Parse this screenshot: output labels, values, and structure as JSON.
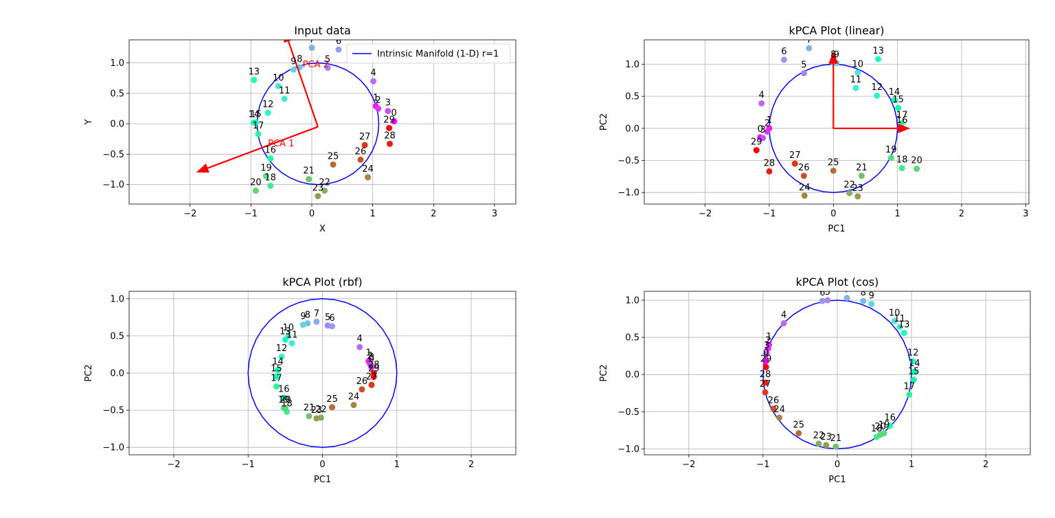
{
  "chart_data": [
    {
      "type": "scatter",
      "title": "Input data",
      "xlabel": "X",
      "ylabel": "Y",
      "xlim": [
        -3.0,
        3.35
      ],
      "ylim": [
        -1.32,
        1.38
      ],
      "xticks": [
        -2,
        -1,
        0,
        1,
        2,
        3
      ],
      "yticks": [
        -1.0,
        -0.5,
        0.0,
        0.5,
        1.0
      ],
      "xtick_labels": [
        "−2",
        "−1",
        "0",
        "1",
        "2",
        "3"
      ],
      "ytick_labels": [
        "−1.0",
        "−0.5",
        "0.0",
        "0.5",
        "1.0"
      ],
      "grid": true,
      "circle": {
        "cx": 0.1,
        "cy": 0.0,
        "r": 1.0,
        "color": "#0000ff"
      },
      "legend": {
        "position": "top-right",
        "entries": [
          {
            "label": "Intrinsic Manifold (1-D) r=1",
            "color": "#0000ff"
          }
        ]
      },
      "arrows": [
        {
          "label": "PCA 2",
          "x0": 0.1,
          "y0": -0.05,
          "x1": -0.45,
          "y1": 1.55,
          "color": "#ff0000",
          "label_at": [
            -0.15,
            0.93
          ]
        },
        {
          "label": "PCA 1",
          "x0": 0.1,
          "y0": -0.05,
          "x1": -1.9,
          "y1": -0.8,
          "color": "#ff0000",
          "label_at": [
            -0.72,
            -0.37
          ]
        }
      ],
      "points": [
        {
          "label": "0",
          "x": 1.35,
          "y": 0.04
        },
        {
          "label": "1",
          "x": 1.05,
          "y": 0.29
        },
        {
          "label": "2",
          "x": 1.09,
          "y": 0.25
        },
        {
          "label": "3",
          "x": 1.25,
          "y": 0.21
        },
        {
          "label": "4",
          "x": 1.01,
          "y": 0.7
        },
        {
          "label": "5",
          "x": 0.26,
          "y": 0.92
        },
        {
          "label": "6",
          "x": 0.44,
          "y": 1.22
        },
        {
          "label": "7",
          "x": 0.0,
          "y": 1.25
        },
        {
          "label": "8",
          "x": -0.2,
          "y": 0.93
        },
        {
          "label": "9",
          "x": -0.3,
          "y": 0.89
        },
        {
          "label": "10",
          "x": -0.55,
          "y": 0.62
        },
        {
          "label": "11",
          "x": -0.45,
          "y": 0.41
        },
        {
          "label": "12",
          "x": -0.72,
          "y": 0.18
        },
        {
          "label": "13",
          "x": -0.95,
          "y": 0.72
        },
        {
          "label": "14",
          "x": -0.95,
          "y": 0.02
        },
        {
          "label": "15",
          "x": -0.92,
          "y": 0.02
        },
        {
          "label": "16",
          "x": -0.68,
          "y": -0.57
        },
        {
          "label": "17",
          "x": -0.88,
          "y": -0.17
        },
        {
          "label": "18",
          "x": -0.68,
          "y": -1.02
        },
        {
          "label": "19",
          "x": -0.75,
          "y": -0.86
        },
        {
          "label": "20",
          "x": -0.92,
          "y": -1.1
        },
        {
          "label": "21",
          "x": -0.05,
          "y": -0.91
        },
        {
          "label": "22",
          "x": 0.21,
          "y": -1.1
        },
        {
          "label": "23",
          "x": 0.1,
          "y": -1.19
        },
        {
          "label": "24",
          "x": 0.92,
          "y": -0.88
        },
        {
          "label": "25",
          "x": 0.35,
          "y": -0.67
        },
        {
          "label": "26",
          "x": 0.8,
          "y": -0.59
        },
        {
          "label": "27",
          "x": 0.87,
          "y": -0.35
        },
        {
          "label": "28",
          "x": 1.28,
          "y": -0.33
        },
        {
          "label": "29",
          "x": 1.27,
          "y": -0.07
        }
      ]
    },
    {
      "type": "scatter",
      "title": "kPCA Plot (linear)",
      "xlabel": "PC1",
      "ylabel": "PC2",
      "xlim": [
        -2.95,
        3.05
      ],
      "ylim": [
        -1.18,
        1.38
      ],
      "xticks": [
        -2,
        -1,
        0,
        1,
        2,
        3
      ],
      "yticks": [
        -1.0,
        -0.5,
        0.0,
        0.5,
        1.0
      ],
      "xtick_labels": [
        "−2",
        "−1",
        "0",
        "1",
        "2",
        "3"
      ],
      "ytick_labels": [
        "−1.0",
        "−0.5",
        "0.0",
        "0.5",
        "1.0"
      ],
      "grid": true,
      "circle": {
        "cx": 0.0,
        "cy": 0.0,
        "r": 1.0,
        "color": "#0000ff"
      },
      "arrows": [
        {
          "label": "",
          "x0": 0.0,
          "y0": 0.0,
          "x1": 1.2,
          "y1": 0.0,
          "color": "#ff0000"
        },
        {
          "label": "",
          "x0": 0.0,
          "y0": 0.0,
          "x1": 0.0,
          "y1": 1.2,
          "color": "#ff0000"
        }
      ],
      "points": [
        {
          "label": "0",
          "x": -1.14,
          "y": -0.14
        },
        {
          "label": "1",
          "x": -1.0,
          "y": 0.0
        },
        {
          "label": "2",
          "x": -1.03,
          "y": -0.05
        },
        {
          "label": "3",
          "x": -1.1,
          "y": -0.15
        },
        {
          "label": "4",
          "x": -1.12,
          "y": 0.39
        },
        {
          "label": "5",
          "x": -0.46,
          "y": 0.86
        },
        {
          "label": "6",
          "x": -0.77,
          "y": 1.07
        },
        {
          "label": "7",
          "x": -0.38,
          "y": 1.25
        },
        {
          "label": "8",
          "x": 0.0,
          "y": 1.02
        },
        {
          "label": "9",
          "x": 0.05,
          "y": 1.02
        },
        {
          "label": "10",
          "x": 0.38,
          "y": 0.87
        },
        {
          "label": "11",
          "x": 0.35,
          "y": 0.63
        },
        {
          "label": "12",
          "x": 0.68,
          "y": 0.51
        },
        {
          "label": "13",
          "x": 0.7,
          "y": 1.08
        },
        {
          "label": "14",
          "x": 0.95,
          "y": 0.44
        },
        {
          "label": "15",
          "x": 1.01,
          "y": 0.32
        },
        {
          "label": "16",
          "x": 1.07,
          "y": 0.0
        },
        {
          "label": "17",
          "x": 1.07,
          "y": 0.08
        },
        {
          "label": "18",
          "x": 1.07,
          "y": -0.62
        },
        {
          "label": "19",
          "x": 0.9,
          "y": -0.46
        },
        {
          "label": "20",
          "x": 1.3,
          "y": -0.63
        },
        {
          "label": "21",
          "x": 0.44,
          "y": -0.74
        },
        {
          "label": "22",
          "x": 0.25,
          "y": -1.01
        },
        {
          "label": "23",
          "x": 0.38,
          "y": -1.06
        },
        {
          "label": "24",
          "x": -0.45,
          "y": -1.05
        },
        {
          "label": "25",
          "x": 0.0,
          "y": -0.66
        },
        {
          "label": "26",
          "x": -0.46,
          "y": -0.74
        },
        {
          "label": "27",
          "x": -0.6,
          "y": -0.55
        },
        {
          "label": "28",
          "x": -1.0,
          "y": -0.67
        },
        {
          "label": "29",
          "x": -1.2,
          "y": -0.34
        }
      ]
    },
    {
      "type": "scatter",
      "title": "kPCA Plot (rbf)",
      "xlabel": "PC1",
      "ylabel": "PC2",
      "xlim": [
        -2.6,
        2.6
      ],
      "ylim": [
        -1.1,
        1.1
      ],
      "xticks": [
        -2,
        -1,
        0,
        1,
        2
      ],
      "yticks": [
        -1.0,
        -0.5,
        0.0,
        0.5,
        1.0
      ],
      "xtick_labels": [
        "−2",
        "−1",
        "0",
        "1",
        "2"
      ],
      "ytick_labels": [
        "−1.0",
        "−0.5",
        "0.0",
        "0.5",
        "1.0"
      ],
      "grid": true,
      "circle": {
        "cx": 0.0,
        "cy": 0.0,
        "r": 1.0,
        "color": "#0000ff"
      },
      "arrows": [],
      "points": [
        {
          "label": "0",
          "x": 0.66,
          "y": 0.08
        },
        {
          "label": "1",
          "x": 0.62,
          "y": 0.16
        },
        {
          "label": "2",
          "x": 0.64,
          "y": 0.12
        },
        {
          "label": "3",
          "x": 0.66,
          "y": 0.1
        },
        {
          "label": "4",
          "x": 0.5,
          "y": 0.35
        },
        {
          "label": "5",
          "x": 0.07,
          "y": 0.64
        },
        {
          "label": "6",
          "x": 0.13,
          "y": 0.63
        },
        {
          "label": "7",
          "x": -0.08,
          "y": 0.69
        },
        {
          "label": "8",
          "x": -0.2,
          "y": 0.67
        },
        {
          "label": "9",
          "x": -0.26,
          "y": 0.65
        },
        {
          "label": "10",
          "x": -0.46,
          "y": 0.5
        },
        {
          "label": "11",
          "x": -0.41,
          "y": 0.4
        },
        {
          "label": "12",
          "x": -0.55,
          "y": 0.22
        },
        {
          "label": "13",
          "x": -0.5,
          "y": 0.45
        },
        {
          "label": "14",
          "x": -0.6,
          "y": 0.04
        },
        {
          "label": "15",
          "x": -0.62,
          "y": -0.05
        },
        {
          "label": "16",
          "x": -0.52,
          "y": -0.33
        },
        {
          "label": "17",
          "x": -0.62,
          "y": -0.18
        },
        {
          "label": "18",
          "x": -0.48,
          "y": -0.52
        },
        {
          "label": "19",
          "x": -0.52,
          "y": -0.47
        },
        {
          "label": "20",
          "x": -0.5,
          "y": -0.47
        },
        {
          "label": "21",
          "x": -0.18,
          "y": -0.58
        },
        {
          "label": "22",
          "x": -0.02,
          "y": -0.6
        },
        {
          "label": "23",
          "x": -0.08,
          "y": -0.61
        },
        {
          "label": "24",
          "x": 0.42,
          "y": -0.43
        },
        {
          "label": "25",
          "x": 0.13,
          "y": -0.46
        },
        {
          "label": "26",
          "x": 0.53,
          "y": -0.22
        },
        {
          "label": "27",
          "x": 0.66,
          "y": -0.16
        },
        {
          "label": "28",
          "x": 0.69,
          "y": 0.0
        },
        {
          "label": "29",
          "x": 0.69,
          "y": -0.05
        }
      ]
    },
    {
      "type": "scatter",
      "title": "kPCA Plot (cos)",
      "xlabel": "PC1",
      "ylabel": "PC2",
      "xlim": [
        -2.6,
        2.6
      ],
      "ylim": [
        -1.08,
        1.12
      ],
      "xticks": [
        -2,
        -1,
        0,
        1,
        2
      ],
      "yticks": [
        -1.0,
        -0.5,
        0.0,
        0.5,
        1.0
      ],
      "xtick_labels": [
        "−2",
        "−1",
        "0",
        "1",
        "2"
      ],
      "ytick_labels": [
        "−1.0",
        "−0.5",
        "0.0",
        "0.5",
        "1.0"
      ],
      "grid": true,
      "circle": {
        "cx": 0.0,
        "cy": 0.0,
        "r": 1.0,
        "color": "#0000ff"
      },
      "arrows": [],
      "points": [
        {
          "label": "0",
          "x": -0.96,
          "y": 0.18
        },
        {
          "label": "1",
          "x": -0.92,
          "y": 0.4
        },
        {
          "label": "2",
          "x": -0.93,
          "y": 0.35
        },
        {
          "label": "3",
          "x": -0.95,
          "y": 0.28
        },
        {
          "label": "4",
          "x": -0.72,
          "y": 0.69
        },
        {
          "label": "5",
          "x": -0.13,
          "y": 1.0
        },
        {
          "label": "6",
          "x": -0.2,
          "y": 0.99
        },
        {
          "label": "7",
          "x": 0.13,
          "y": 1.03
        },
        {
          "label": "8",
          "x": 0.35,
          "y": 0.99
        },
        {
          "label": "9",
          "x": 0.46,
          "y": 0.95
        },
        {
          "label": "10",
          "x": 0.77,
          "y": 0.72
        },
        {
          "label": "11",
          "x": 0.84,
          "y": 0.64
        },
        {
          "label": "12",
          "x": 1.02,
          "y": 0.18
        },
        {
          "label": "13",
          "x": 0.9,
          "y": 0.56
        },
        {
          "label": "14",
          "x": 1.04,
          "y": 0.04
        },
        {
          "label": "15",
          "x": 1.03,
          "y": -0.07
        },
        {
          "label": "16",
          "x": 0.71,
          "y": -0.69
        },
        {
          "label": "17",
          "x": 0.97,
          "y": -0.27
        },
        {
          "label": "18",
          "x": 0.53,
          "y": -0.84
        },
        {
          "label": "19",
          "x": 0.63,
          "y": -0.79
        },
        {
          "label": "20",
          "x": 0.58,
          "y": -0.81
        },
        {
          "label": "21",
          "x": -0.02,
          "y": -0.97
        },
        {
          "label": "22",
          "x": -0.25,
          "y": -0.93
        },
        {
          "label": "23",
          "x": -0.15,
          "y": -0.95
        },
        {
          "label": "24",
          "x": -0.78,
          "y": -0.58
        },
        {
          "label": "25",
          "x": -0.52,
          "y": -0.79
        },
        {
          "label": "26",
          "x": -0.86,
          "y": -0.46
        },
        {
          "label": "27",
          "x": -0.97,
          "y": -0.24
        },
        {
          "label": "28",
          "x": -0.97,
          "y": -0.11
        },
        {
          "label": "29",
          "x": -0.96,
          "y": 0.1
        }
      ]
    }
  ]
}
